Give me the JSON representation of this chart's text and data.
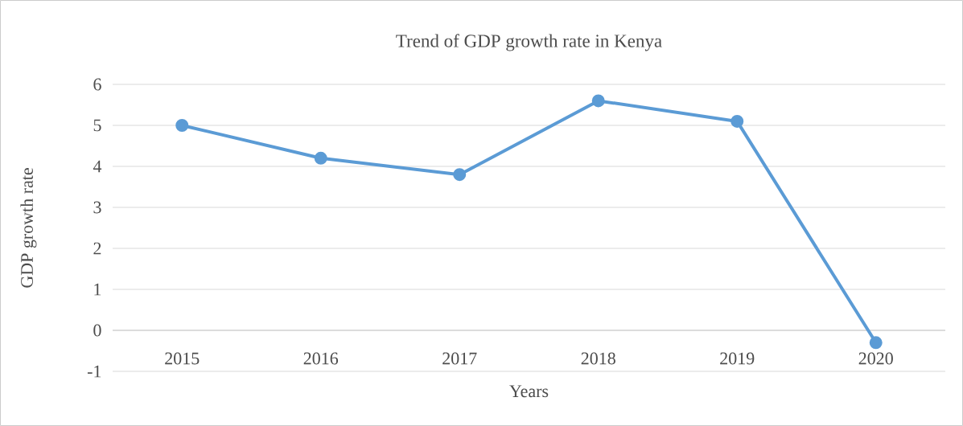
{
  "chart_data": {
    "type": "line",
    "title": "Trend of GDP growth rate in Kenya",
    "xlabel": "Years",
    "ylabel": "GDP growth rate",
    "categories": [
      "2015",
      "2016",
      "2017",
      "2018",
      "2019",
      "2020"
    ],
    "values": [
      5.0,
      4.2,
      3.8,
      5.6,
      5.1,
      -0.3
    ],
    "color": "#5b9bd5",
    "marker": "circle",
    "line_style": "solid",
    "grid": "y",
    "ylim": [
      -1,
      6
    ],
    "yticks": [
      -1,
      0,
      1,
      2,
      3,
      4,
      5,
      6
    ]
  }
}
